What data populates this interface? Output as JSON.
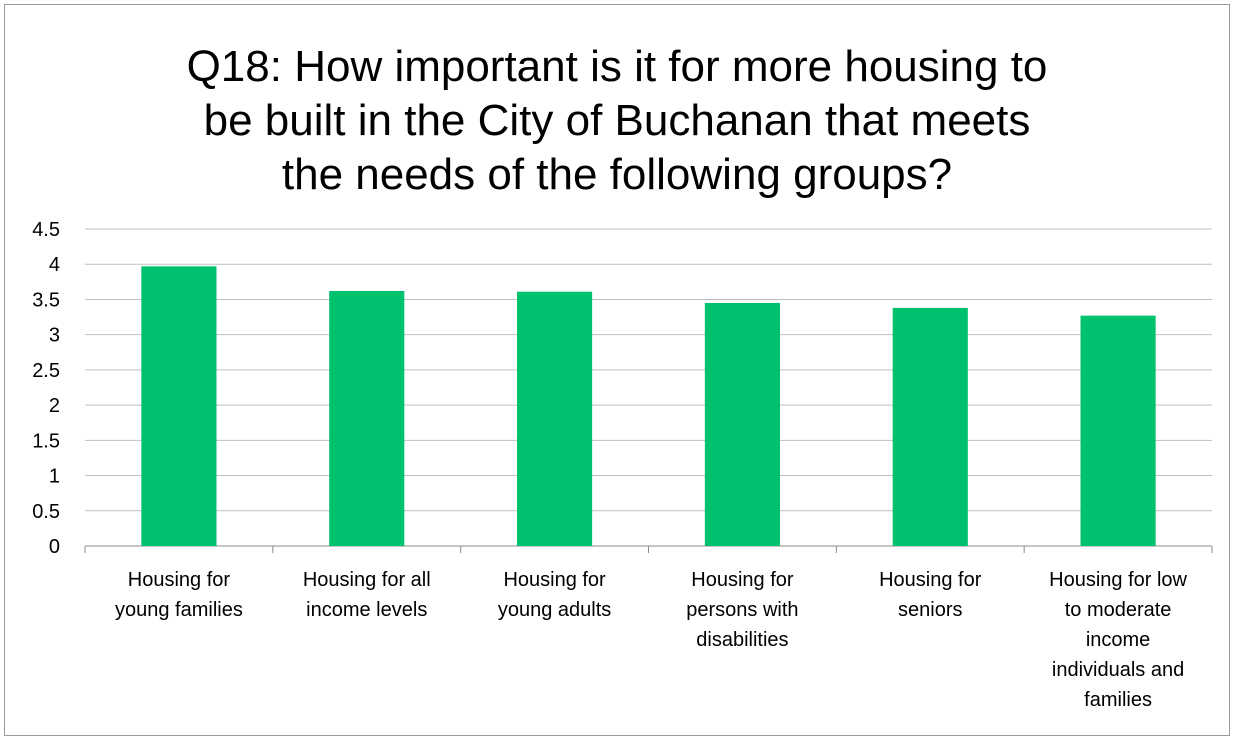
{
  "chart_data": {
    "type": "bar",
    "title": "Q18: How important is it for more housing to\nbe built in the City of Buchanan that meets\nthe needs of the following groups?",
    "xlabel": "",
    "ylabel": "",
    "ylim": [
      0,
      4.5
    ],
    "yticks": [
      "0",
      "0.5",
      "1",
      "1.5",
      "2",
      "2.5",
      "3",
      "3.5",
      "4",
      "4.5"
    ],
    "grid": true,
    "legend": "none",
    "categories": [
      "Housing for young families",
      "Housing for all income levels",
      "Housing for young adults",
      "Housing for persons with disabilities",
      "Housing for seniors",
      "Housing for low to moderate income individuals and families"
    ],
    "category_label_lines": [
      [
        "Housing for",
        "young families"
      ],
      [
        "Housing for all",
        "income levels"
      ],
      [
        "Housing for",
        "young adults"
      ],
      [
        "Housing for",
        "persons with",
        "disabilities"
      ],
      [
        "Housing for",
        "seniors"
      ],
      [
        "Housing for low",
        "to moderate",
        "income",
        "individuals and",
        "families"
      ]
    ],
    "values": [
      3.97,
      3.62,
      3.61,
      3.45,
      3.38,
      3.27
    ],
    "bar_color": "#00C16E",
    "grid_color": "#BFBFBF",
    "axis_color": "#8C8C8C"
  }
}
